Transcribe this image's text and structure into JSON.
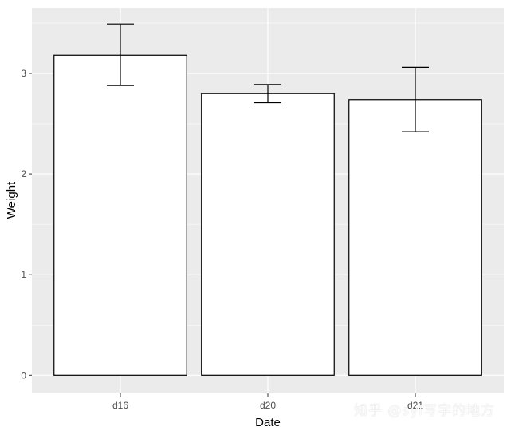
{
  "chart_data": {
    "type": "bar",
    "categories": [
      "d16",
      "d20",
      "d21"
    ],
    "values": [
      3.18,
      2.8,
      2.74
    ],
    "error_low": [
      2.88,
      2.71,
      2.42
    ],
    "error_high": [
      3.49,
      2.89,
      3.06
    ],
    "xlabel": "Date",
    "ylabel": "Weight",
    "ylim": [
      -0.18,
      3.65
    ],
    "yticks": [
      0,
      1,
      2,
      3
    ],
    "grid": true,
    "colors": {
      "panel": "#ebebeb",
      "grid": "#ffffff",
      "bar_fill": "#ffffff",
      "bar_stroke": "#000000"
    }
  },
  "watermark": "知乎 @syl写字的地方"
}
